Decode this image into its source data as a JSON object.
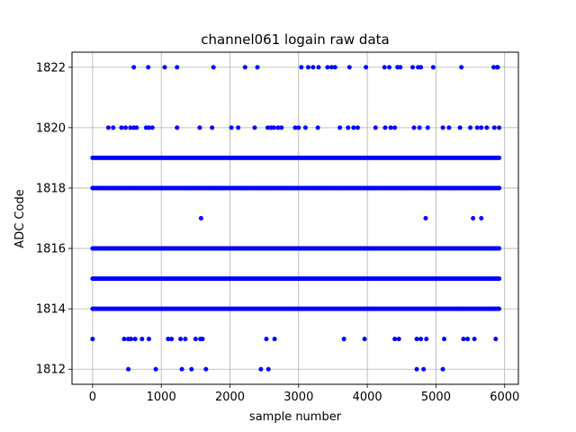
{
  "chart_data": {
    "type": "scatter",
    "title": "channel061 logain raw data",
    "xlabel": "sample number",
    "ylabel": "ADC Code",
    "xlim": [
      -300,
      6200
    ],
    "ylim": [
      1811.5,
      1822.5
    ],
    "xticks": [
      0,
      1000,
      2000,
      3000,
      4000,
      5000,
      6000
    ],
    "yticks": [
      1812,
      1814,
      1816,
      1818,
      1820,
      1822
    ],
    "grid": true,
    "marker_color": "#0000ff",
    "series": [
      {
        "values_by_level": {
          "1812": [
            520,
            920,
            1300,
            1440,
            1650,
            2450,
            2560,
            4720,
            4820,
            5100
          ],
          "1813": [
            0,
            460,
            520,
            560,
            620,
            720,
            820,
            1100,
            1150,
            1280,
            1350,
            1500,
            1570,
            1600,
            2530,
            2650,
            3660,
            3960,
            4400,
            4460,
            4720,
            4780,
            4860,
            5120,
            5400,
            5460,
            5560,
            5870
          ],
          "1817": [
            1580,
            4850,
            5540,
            5660
          ],
          "1820": [
            230,
            300,
            420,
            480,
            550,
            600,
            640,
            780,
            820,
            870,
            1230,
            1560,
            1740,
            2020,
            2120,
            2360,
            2550,
            2600,
            2640,
            2700,
            2750,
            2950,
            3000,
            3100,
            3280,
            3600,
            3720,
            3800,
            3860,
            4120,
            4260,
            4340,
            4400,
            4680,
            4760,
            4880,
            5100,
            5190,
            5350,
            5500,
            5600,
            5660,
            5740,
            5850,
            5920
          ],
          "1822": [
            600,
            810,
            1050,
            1230,
            1760,
            2220,
            2400,
            3040,
            3140,
            3210,
            3290,
            3420,
            3480,
            3530,
            3740,
            3980,
            4250,
            4320,
            4440,
            4480,
            4660,
            4740,
            4780,
            4960,
            5370,
            5840,
            5890,
            5900
          ]
        },
        "dense_levels": [
          1814,
          1815,
          1816,
          1818,
          1819
        ],
        "dense_range": [
          0,
          5930
        ]
      }
    ]
  }
}
